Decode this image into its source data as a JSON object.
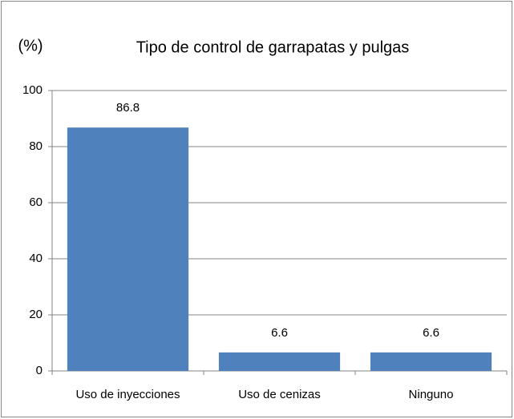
{
  "chart_data": {
    "type": "bar",
    "title": "Tipo de control de garrapatas y pulgas",
    "y_label": "(%)",
    "categories": [
      "Uso de inyecciones",
      "Uso de cenizas",
      "Ninguno"
    ],
    "values": [
      86.8,
      6.6,
      6.6
    ],
    "color": "#4f81bd",
    "ylim": [
      0,
      100
    ],
    "yticks": [
      0,
      20,
      40,
      60,
      80,
      100
    ],
    "grid": true
  }
}
